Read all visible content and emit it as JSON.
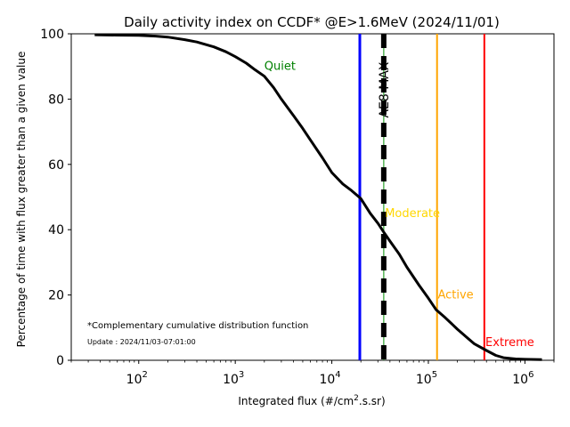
{
  "chart_data": {
    "type": "line",
    "title": "Daily activity index on CCDF* @E>1.6MeV (2024/11/01)",
    "xlabel_main": "Integrated flux (#/cm",
    "xlabel_sup": "2",
    "xlabel_tail": ".s.sr)",
    "ylabel": "Percentage of time with flux greater than a given value",
    "x_scale": "log",
    "xlim": [
      20,
      2000000
    ],
    "ylim": [
      0,
      100
    ],
    "x_ticks": [
      {
        "value": 100,
        "base": "10",
        "exp": "2"
      },
      {
        "value": 1000,
        "base": "10",
        "exp": "3"
      },
      {
        "value": 10000,
        "base": "10",
        "exp": "4"
      },
      {
        "value": 100000,
        "base": "10",
        "exp": "5"
      },
      {
        "value": 1000000,
        "base": "10",
        "exp": "6"
      }
    ],
    "y_ticks": [
      {
        "value": 0,
        "label": "0"
      },
      {
        "value": 20,
        "label": "20"
      },
      {
        "value": 40,
        "label": "40"
      },
      {
        "value": 60,
        "label": "60"
      },
      {
        "value": 80,
        "label": "80"
      },
      {
        "value": 100,
        "label": "100"
      }
    ],
    "grid": false,
    "series": [
      {
        "color": "#000000",
        "x": [
          35,
          60,
          100,
          150,
          200,
          300,
          400,
          600,
          800,
          1000,
          1300,
          1600,
          2000,
          2500,
          3000,
          4000,
          5000,
          6000,
          8000,
          10000,
          13000,
          16000,
          20000,
          25000,
          30000,
          35000,
          40000,
          50000,
          60000,
          80000,
          100000,
          120000,
          150000,
          200000,
          250000,
          300000,
          400000,
          500000,
          600000,
          800000,
          1000000,
          1500000
        ],
        "y": [
          99.7,
          99.6,
          99.5,
          99.3,
          99.0,
          98.2,
          97.5,
          96.0,
          94.5,
          93.0,
          91.0,
          89.0,
          87.0,
          83.5,
          80.0,
          75.0,
          71.0,
          67.5,
          62.0,
          57.5,
          54.0,
          52.0,
          49.5,
          45.0,
          42.0,
          39.0,
          36.5,
          32.5,
          28.5,
          23.0,
          19.0,
          15.5,
          13.0,
          9.5,
          7.0,
          5.0,
          3.0,
          1.5,
          0.8,
          0.4,
          0.3,
          0.2
        ]
      }
    ],
    "vertical_lines": [
      {
        "x": 19500,
        "color": "#0000ff",
        "style": "solid",
        "label": ""
      },
      {
        "x": 34500,
        "color": "#000000",
        "style": "dashed",
        "label": "AE8 MAX"
      },
      {
        "x": 123000,
        "color": "#ffa500",
        "style": "solid",
        "label": ""
      },
      {
        "x": 380000,
        "color": "#ff0000",
        "style": "solid",
        "label": ""
      }
    ],
    "annotations": [
      {
        "text": "Quiet",
        "x": 2000,
        "y": 90,
        "color": "#008000"
      },
      {
        "text": "Moderate",
        "x": 35500,
        "y": 45,
        "color": "#ffd700"
      },
      {
        "text": "Active",
        "x": 125000,
        "y": 20,
        "color": "#ffa500"
      },
      {
        "text": "Extreme",
        "x": 390000,
        "y": 5.5,
        "color": "#ff0000"
      }
    ],
    "footnote": "*Complementary cumulative distribution function",
    "update": "Update : 2024/11/03-07:01:00"
  }
}
